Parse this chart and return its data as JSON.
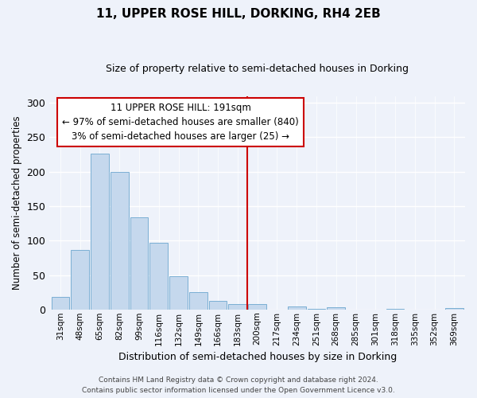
{
  "title": "11, UPPER ROSE HILL, DORKING, RH4 2EB",
  "subtitle": "Size of property relative to semi-detached houses in Dorking",
  "xlabel": "Distribution of semi-detached houses by size in Dorking",
  "ylabel": "Number of semi-detached properties",
  "bar_labels": [
    "31sqm",
    "48sqm",
    "65sqm",
    "82sqm",
    "99sqm",
    "116sqm",
    "132sqm",
    "149sqm",
    "166sqm",
    "183sqm",
    "200sqm",
    "217sqm",
    "234sqm",
    "251sqm",
    "268sqm",
    "285sqm",
    "301sqm",
    "318sqm",
    "335sqm",
    "352sqm",
    "369sqm"
  ],
  "bar_values": [
    18,
    86,
    226,
    200,
    134,
    97,
    48,
    25,
    12,
    8,
    8,
    0,
    4,
    1,
    3,
    0,
    0,
    1,
    0,
    0,
    2
  ],
  "bar_color": "#c5d8ed",
  "bar_edge_color": "#7bafd4",
  "ylim": [
    0,
    310
  ],
  "yticks": [
    0,
    50,
    100,
    150,
    200,
    250,
    300
  ],
  "vline_color": "#cc0000",
  "annotation_title": "11 UPPER ROSE HILL: 191sqm",
  "annotation_line1": "← 97% of semi-detached houses are smaller (840)",
  "annotation_line2": "3% of semi-detached houses are larger (25) →",
  "footer_line1": "Contains HM Land Registry data © Crown copyright and database right 2024.",
  "footer_line2": "Contains public sector information licensed under the Open Government Licence v3.0.",
  "bg_color": "#eef2fa",
  "grid_color": "#d8e0f0"
}
